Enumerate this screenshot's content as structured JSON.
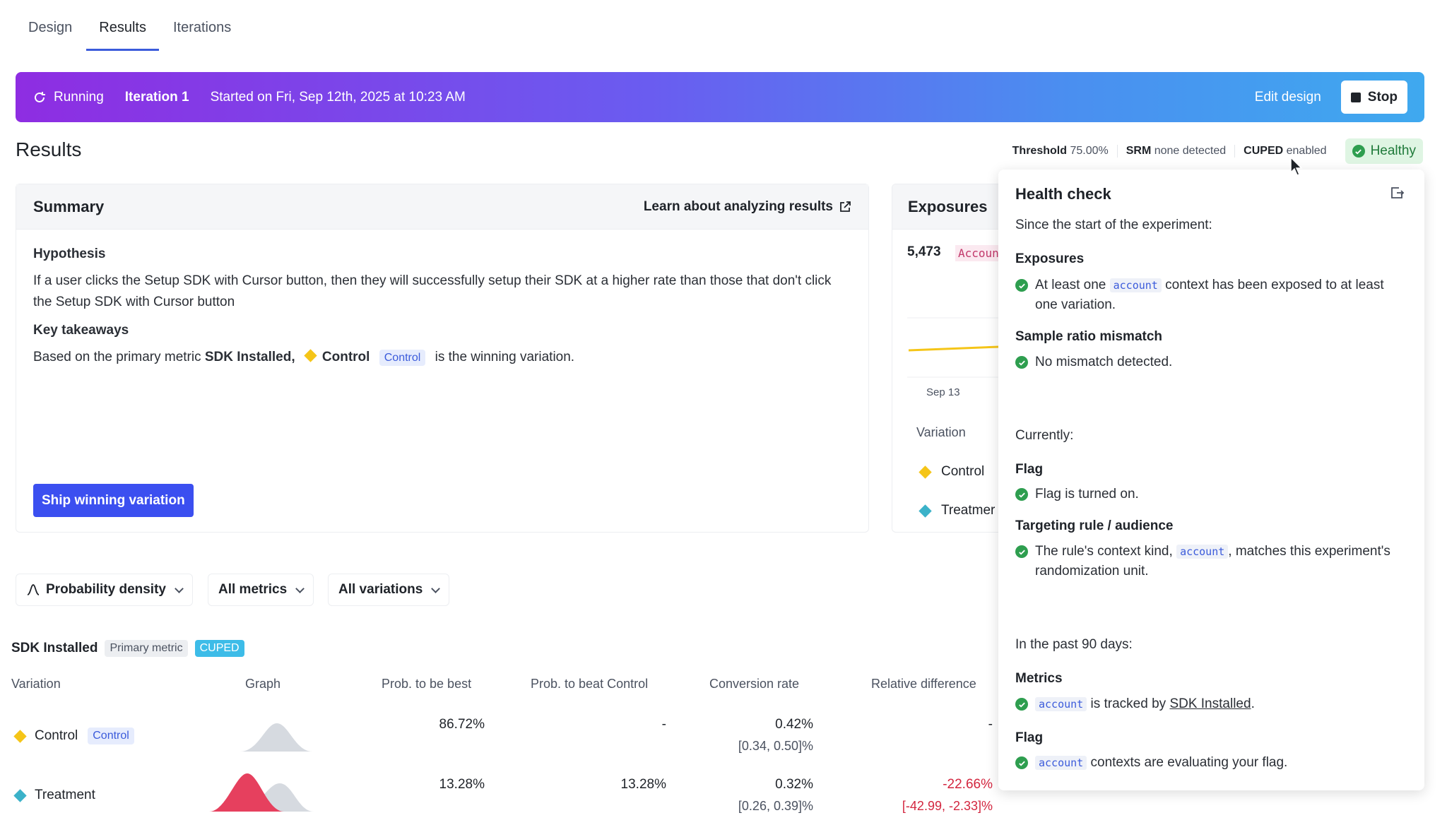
{
  "tabs": [
    "Design",
    "Results",
    "Iterations"
  ],
  "banner": {
    "status": "Running",
    "iteration": "Iteration 1",
    "started": "Started on Fri, Sep 12th, 2025 at 10:23 AM",
    "edit": "Edit design",
    "stop": "Stop"
  },
  "results": {
    "title": "Results",
    "threshold_label": "Threshold",
    "threshold_value": "75.00%",
    "srm_label": "SRM",
    "srm_value": "none detected",
    "cuped_label": "CUPED",
    "cuped_value": "enabled",
    "health": "Healthy"
  },
  "summary": {
    "title": "Summary",
    "learn": "Learn about analyzing results",
    "hypothesis_h": "Hypothesis",
    "hypothesis": "If a user clicks the Setup SDK with Cursor button, then they will successfully setup their SDK at a higher rate than those that don't click the Setup SDK with Cursor button",
    "takeaways_h": "Key takeaways",
    "takeaway_pre": "Based on the primary metric",
    "takeaway_metric": "SDK Installed,",
    "takeaway_variation": "Control",
    "takeaway_pill": "Control",
    "takeaway_post": "is the winning variation.",
    "ship": "Ship winning variation"
  },
  "exposures": {
    "title": "Exposures",
    "count": "5,473",
    "context": "Accoun",
    "axis_label": "Sep 13",
    "variation_h": "Variation",
    "rows": [
      "Control",
      "Treatmer"
    ]
  },
  "filters": {
    "chart": "Probability density",
    "metrics": "All metrics",
    "variations": "All variations"
  },
  "metric": {
    "name": "SDK Installed",
    "primary": "Primary metric",
    "cuped": "CUPED",
    "headers": {
      "variation": "Variation",
      "graph": "Graph",
      "prob_best": "Prob. to be best",
      "prob_beat": "Prob. to beat Control",
      "conv": "Conversion rate",
      "rel": "Relative difference"
    },
    "rows": [
      {
        "name": "Control",
        "pill": "Control",
        "prob_best": "86.72%",
        "prob_beat": "-",
        "conv": "0.42%",
        "conv_ci": "[0.34, 0.50]%",
        "rel": "-",
        "rel_ci": ""
      },
      {
        "name": "Treatment",
        "pill": "",
        "prob_best": "13.28%",
        "prob_beat": "13.28%",
        "conv": "0.32%",
        "conv_ci": "[0.26, 0.39]%",
        "rel": "-22.66%",
        "rel_ci": "[-42.99, -2.33]%"
      }
    ]
  },
  "health_check": {
    "title": "Health check",
    "since": "Since the start of the experiment:",
    "exposures_h": "Exposures",
    "exposures_pre": "At least one",
    "exposures_code": "account",
    "exposures_post": "context has been exposed to at least one variation.",
    "srm_h": "Sample ratio mismatch",
    "srm": "No mismatch detected.",
    "currently": "Currently:",
    "flag_h": "Flag",
    "flag": "Flag is turned on.",
    "targeting_h": "Targeting rule / audience",
    "targeting_pre": "The rule's context kind,",
    "targeting_code": "account",
    "targeting_post": ", matches this experiment's randomization unit.",
    "past": "In the past 90 days:",
    "metrics_h": "Metrics",
    "metrics_code": "account",
    "metrics_mid": "is tracked by",
    "metrics_link": "SDK Installed",
    "metrics_end": ".",
    "flag2_h": "Flag",
    "flag2_code": "account",
    "flag2_post": "contexts are evaluating your flag."
  },
  "colors": {
    "control": "#f5c518",
    "treatment": "#3bb2c9",
    "accent": "#3b4ff0",
    "healthy": "#2e9e4f"
  }
}
